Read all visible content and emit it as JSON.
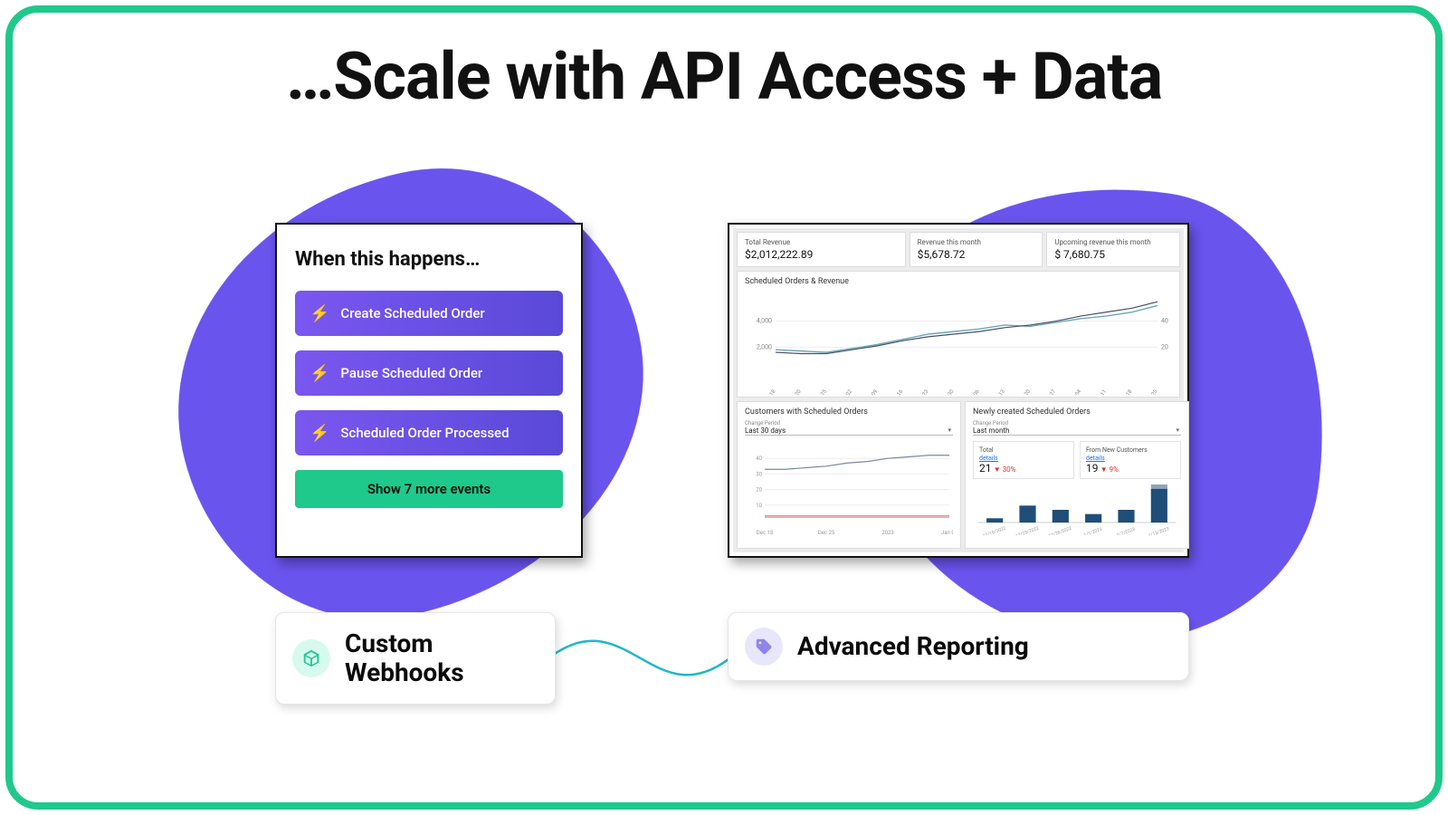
{
  "colors": {
    "accent": "#1ec98b",
    "blob": "#6a54ee",
    "evt_grad_a": "#7a57f0",
    "evt_grad_b": "#5a49d8",
    "bolt": "#25e39a",
    "show_more_bg": "#1ec98b",
    "connector": "#1fb7c9"
  },
  "title": "…Scale with API Access + Data",
  "webhooks": {
    "heading": "When this happens…",
    "events": [
      {
        "label": "Create Scheduled Order"
      },
      {
        "label": "Pause Scheduled Order"
      },
      {
        "label": "Scheduled Order Processed"
      }
    ],
    "show_more": "Show 7 more events"
  },
  "dashboard": {
    "kpis": [
      {
        "label": "Total Revenue",
        "value": "$2,012,222.89"
      },
      {
        "label": "Revenue this month",
        "value": "$5,678.72"
      },
      {
        "label": "Upcoming revenue this month",
        "value": "$ 7,680.75"
      }
    ],
    "scheduled": {
      "title": "Scheduled Orders & Revenue",
      "y_left_ticks": [
        2000,
        4000
      ],
      "y_right_ticks": [
        20,
        40
      ],
      "x_labels": [
        "Sep 18",
        "Sep 20",
        "Sep 25",
        "Oct 02",
        "Oct 09",
        "Oct 16",
        "Oct 23",
        "Oct 30",
        "Nov 06",
        "Nov 13",
        "Nov 20",
        "Nov 27",
        "Dec 04",
        "Dec 11",
        "Dec 18",
        "Dec 25"
      ],
      "series": [
        {
          "name": "orders",
          "color": "#6aa9b5",
          "width": 1.4,
          "points": [
            1800,
            1700,
            1600,
            1900,
            2200,
            2600,
            3000,
            3200,
            3400,
            3700,
            3600,
            3900,
            4200,
            4400,
            4700,
            5200
          ]
        },
        {
          "name": "revenue",
          "color": "#46506b",
          "width": 1.2,
          "points": [
            1600,
            1500,
            1500,
            1800,
            2100,
            2500,
            2800,
            3000,
            3200,
            3500,
            3700,
            4000,
            4400,
            4700,
            5000,
            5500
          ]
        }
      ],
      "y_max": 6000
    },
    "customers": {
      "title": "Customers with Scheduled Orders",
      "period_label": "Change Period",
      "period_value": "Last 30 days",
      "y_ticks": [
        10,
        20,
        30,
        40
      ],
      "x_labels": [
        "Dec 18",
        "Dec 25",
        "2023",
        "Jan 08"
      ],
      "series": [
        {
          "color": "#7a8aa0",
          "width": 1.2,
          "points": [
            33,
            33,
            34,
            35,
            37,
            38,
            40,
            41,
            42,
            42
          ]
        },
        {
          "color": "#d44",
          "width": 1.0,
          "points": [
            3,
            3,
            3,
            3,
            3,
            3,
            3,
            3,
            3,
            3
          ]
        },
        {
          "color": "#e7c23a",
          "width": 1.0,
          "points": [
            2,
            2,
            2,
            2,
            2,
            2,
            2,
            2,
            2,
            2
          ]
        }
      ],
      "y_max": 50
    },
    "new_orders": {
      "title": "Newly created Scheduled Orders",
      "period_label": "Change Period",
      "period_value": "Last month",
      "kpis": [
        {
          "label": "Total",
          "link": "details",
          "value": "21",
          "delta": "▼ 30%"
        },
        {
          "label": "From New Customers",
          "link": "details",
          "value": "19",
          "delta": "▼ 9%"
        }
      ],
      "bars": {
        "color": "#1f4e79",
        "x_labels": [
          "12/19/2022",
          "12/23/2022",
          "12/28/2022",
          "1/1/2023",
          "1/7/2023",
          "1/13/2023"
        ],
        "values": [
          1,
          4,
          3,
          2,
          3,
          8
        ],
        "stack_top": [
          0,
          0,
          0,
          0,
          0,
          1
        ],
        "stack_color": "#90a4b8",
        "y_max": 9
      }
    }
  },
  "labels": {
    "left": "Custom\nWebhooks",
    "right": "Advanced Reporting"
  }
}
